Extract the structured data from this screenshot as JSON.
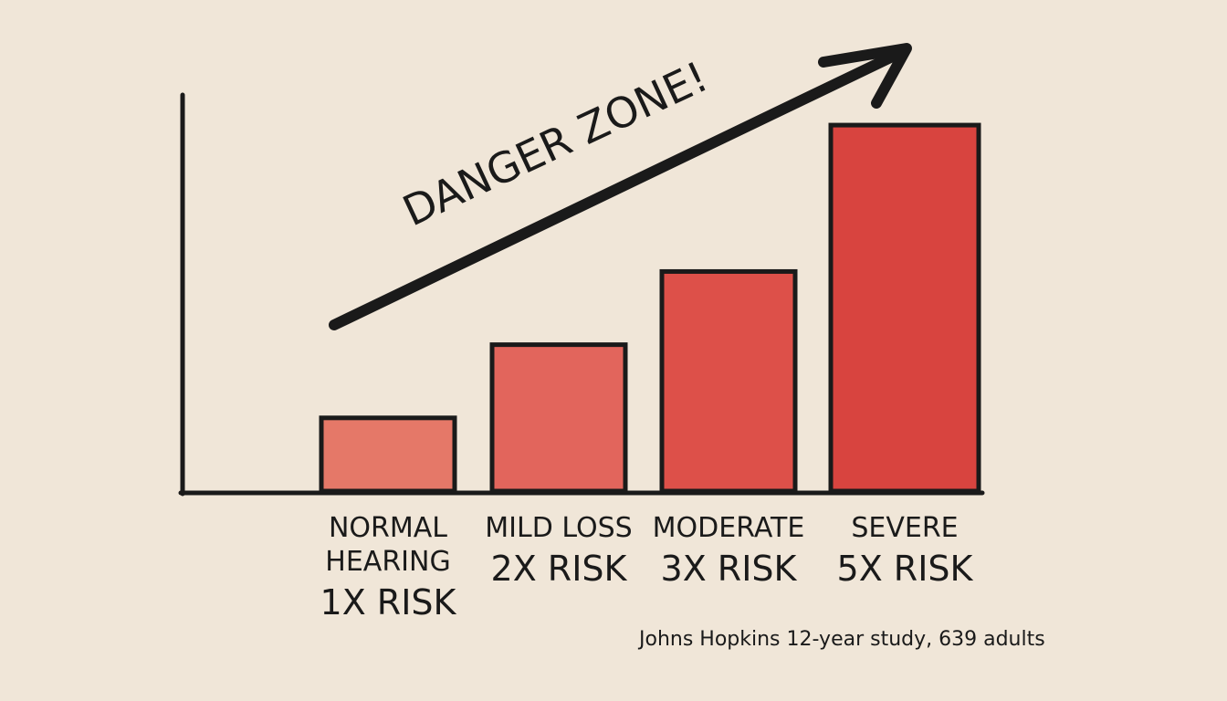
{
  "chart_data": {
    "type": "bar",
    "categories": [
      "NORMAL HEARING",
      "MILD LOSS",
      "MODERATE",
      "SEVERE"
    ],
    "values": [
      1,
      2,
      3,
      5
    ],
    "value_labels": [
      "1X RISK",
      "2X RISK",
      "3X RISK",
      "5X RISK"
    ],
    "colors": [
      "#e57868",
      "#e2655c",
      "#dd5049",
      "#d8443f"
    ],
    "ylim": [
      0,
      5.4
    ],
    "annotation": "DANGER ZONE!",
    "source": "Johns Hopkins 12-year study, 639 adults"
  }
}
